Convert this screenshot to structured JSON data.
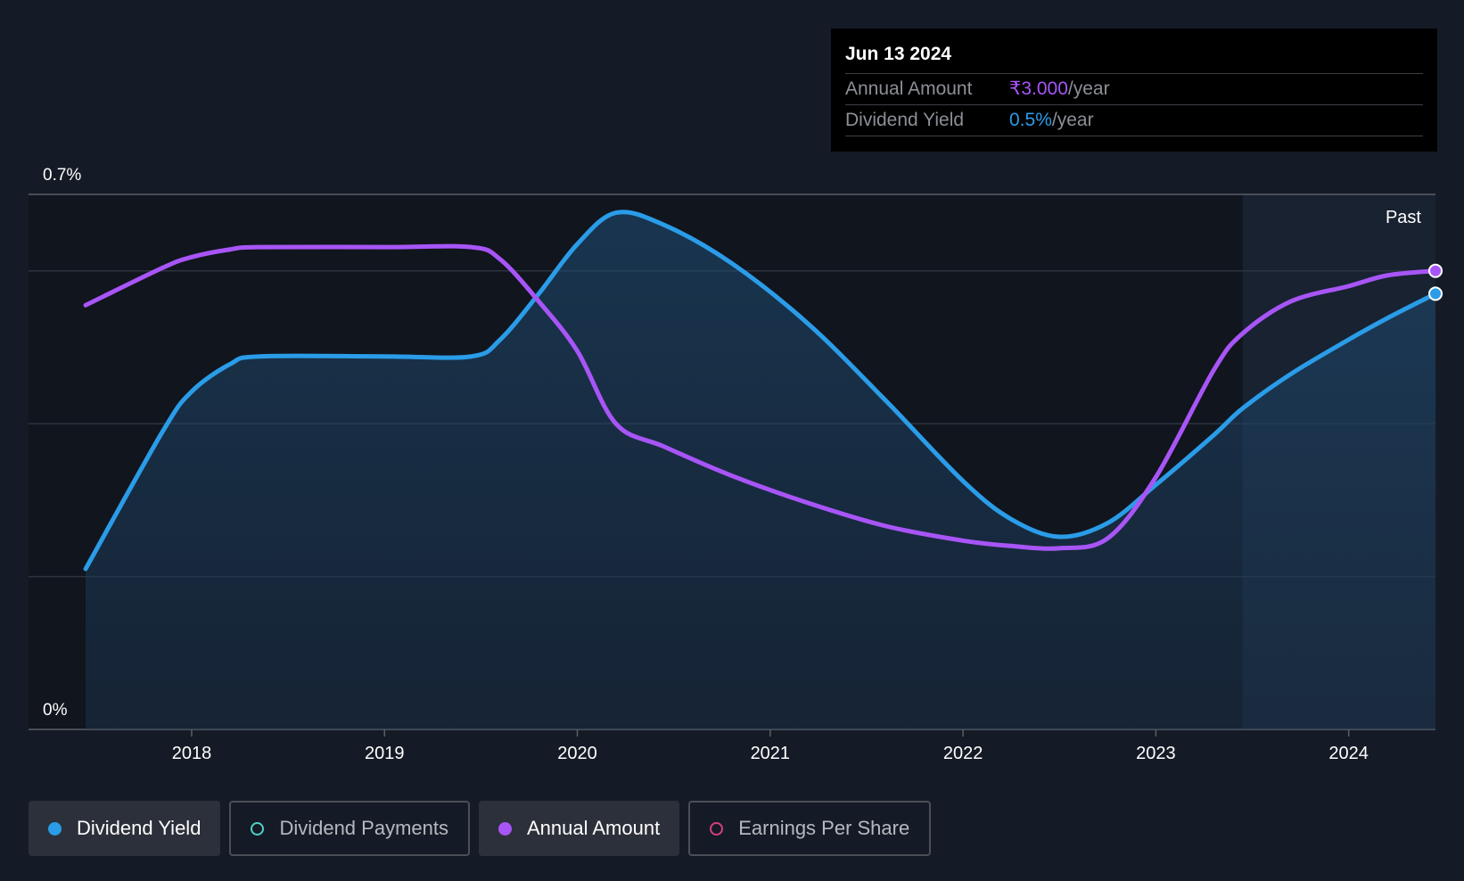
{
  "tooltip": {
    "date": "Jun 13 2024",
    "rows": [
      {
        "label": "Annual Amount",
        "value": "₹3.000",
        "unit": "/year"
      },
      {
        "label": "Dividend Yield",
        "value": "0.5%",
        "unit": "/year"
      }
    ]
  },
  "past_label": "Past",
  "legend": [
    {
      "label": "Dividend Yield",
      "color": "#2a9ce8",
      "active": true,
      "icon": "filled-dot-icon"
    },
    {
      "label": "Dividend Payments",
      "color": "#4fd1c5",
      "active": false,
      "icon": "hollow-dot-icon"
    },
    {
      "label": "Annual Amount",
      "color": "#a855f7",
      "active": true,
      "icon": "filled-dot-icon"
    },
    {
      "label": "Earnings Per Share",
      "color": "#d63f7a",
      "active": false,
      "icon": "hollow-dot-icon"
    }
  ],
  "chart_data": {
    "type": "line",
    "y_tick_labels": [
      "0.7%",
      "0%"
    ],
    "ylim": [
      0,
      0.7
    ],
    "xlim": [
      2017.45,
      2024.45
    ],
    "past_region_start": 2023.45,
    "x_ticks": [
      "2018",
      "2019",
      "2020",
      "2021",
      "2022",
      "2023",
      "2024"
    ],
    "gridlines": [
      0.2,
      0.4,
      0.6
    ],
    "series": [
      {
        "name": "Dividend Yield",
        "color": "#2a9ce8",
        "filled": true,
        "points": [
          [
            2017.45,
            0.21
          ],
          [
            2017.85,
            0.39
          ],
          [
            2018.0,
            0.442
          ],
          [
            2018.2,
            0.478
          ],
          [
            2018.35,
            0.488
          ],
          [
            2019.0,
            0.488
          ],
          [
            2019.45,
            0.488
          ],
          [
            2019.6,
            0.51
          ],
          [
            2019.8,
            0.57
          ],
          [
            2020.0,
            0.635
          ],
          [
            2020.2,
            0.676
          ],
          [
            2020.45,
            0.66
          ],
          [
            2020.8,
            0.61
          ],
          [
            2021.2,
            0.53
          ],
          [
            2021.6,
            0.43
          ],
          [
            2022.0,
            0.325
          ],
          [
            2022.25,
            0.275
          ],
          [
            2022.5,
            0.252
          ],
          [
            2022.75,
            0.27
          ],
          [
            2023.0,
            0.32
          ],
          [
            2023.3,
            0.385
          ],
          [
            2023.45,
            0.42
          ],
          [
            2023.7,
            0.465
          ],
          [
            2024.0,
            0.51
          ],
          [
            2024.2,
            0.538
          ],
          [
            2024.45,
            0.57
          ]
        ]
      },
      {
        "name": "Annual Amount",
        "color": "#a855f7",
        "filled": false,
        "points": [
          [
            2017.45,
            0.555
          ],
          [
            2017.85,
            0.604
          ],
          [
            2018.0,
            0.618
          ],
          [
            2018.2,
            0.628
          ],
          [
            2018.35,
            0.631
          ],
          [
            2019.0,
            0.631
          ],
          [
            2019.45,
            0.631
          ],
          [
            2019.6,
            0.615
          ],
          [
            2019.8,
            0.56
          ],
          [
            2020.0,
            0.495
          ],
          [
            2020.2,
            0.4
          ],
          [
            2020.45,
            0.37
          ],
          [
            2020.8,
            0.332
          ],
          [
            2021.2,
            0.296
          ],
          [
            2021.6,
            0.266
          ],
          [
            2022.0,
            0.247
          ],
          [
            2022.25,
            0.24
          ],
          [
            2022.5,
            0.237
          ],
          [
            2022.75,
            0.25
          ],
          [
            2023.0,
            0.33
          ],
          [
            2023.3,
            0.47
          ],
          [
            2023.45,
            0.518
          ],
          [
            2023.7,
            0.56
          ],
          [
            2024.0,
            0.58
          ],
          [
            2024.2,
            0.594
          ],
          [
            2024.45,
            0.6
          ]
        ]
      }
    ]
  }
}
